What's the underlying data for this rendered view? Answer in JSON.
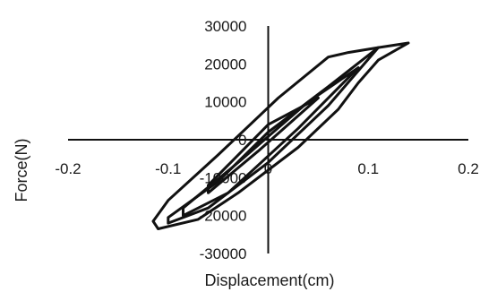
{
  "chart_data": {
    "type": "scatter",
    "title": "",
    "xlabel": "Displacement(cm)",
    "ylabel": "Force(N)",
    "xlim": [
      -0.2,
      0.2
    ],
    "ylim": [
      -30000,
      30000
    ],
    "x_ticks": [
      -0.2,
      -0.1,
      0,
      0.1,
      0.2
    ],
    "x_tick_labels": [
      "-0.2",
      "-0.1",
      "0",
      "0.1",
      "0.2"
    ],
    "y_ticks": [
      -30000,
      -20000,
      -10000,
      0,
      10000,
      20000,
      30000
    ],
    "y_tick_labels": [
      "-30000",
      "-20000",
      "-10000",
      "0",
      "10000",
      "20000",
      "30000"
    ],
    "axes_cross_at_origin": true,
    "grid": false,
    "legend": false,
    "series": [
      {
        "x": [
          0.14,
          0.11,
          0.08,
          0.06,
          0.01,
          -0.05,
          -0.1,
          -0.115,
          -0.11,
          -0.07,
          -0.03,
          0.03,
          0.07,
          0.09,
          0.1,
          0.11,
          0.14
        ],
        "y": [
          25500,
          24300,
          23000,
          21800,
          11000,
          -4000,
          -16000,
          -21500,
          -23500,
          -21000,
          -14000,
          -2000,
          8000,
          15000,
          18000,
          21000,
          25500
        ]
      },
      {
        "x": [
          0.11,
          0.06,
          0.0,
          -0.05,
          -0.1,
          -0.1,
          -0.06,
          0.0,
          0.06,
          0.11
        ],
        "y": [
          24300,
          14000,
          2000,
          -11000,
          -20500,
          -22000,
          -18000,
          -6000,
          9000,
          24300
        ]
      },
      {
        "x": [
          0.09,
          0.04,
          -0.03,
          -0.085,
          -0.085,
          -0.04,
          0.03,
          0.09
        ],
        "y": [
          19000,
          10000,
          -6000,
          -18000,
          -20000,
          -14000,
          3000,
          19000
        ]
      },
      {
        "x": [
          0.05,
          0.0,
          -0.06,
          -0.06,
          -0.01,
          0.05
        ],
        "y": [
          11000,
          4000,
          -12000,
          -14000,
          -3000,
          11000
        ]
      }
    ]
  }
}
